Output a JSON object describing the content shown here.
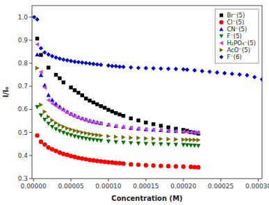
{
  "chart_data": {
    "type": "scatter",
    "xlabel": "Concentration (M)",
    "ylabel": "I/I₀",
    "xlim": [
      -2e-06,
      0.000305
    ],
    "ylim": [
      0.3,
      1.05
    ],
    "xticks": [
      {
        "value": 0.0,
        "label": "0.00000"
      },
      {
        "value": 5e-05,
        "label": "0.00005"
      },
      {
        "value": 0.0001,
        "label": "0.00010"
      },
      {
        "value": 0.00015,
        "label": "0.00015"
      },
      {
        "value": 0.0002,
        "label": "0.00020"
      },
      {
        "value": 0.00025,
        "label": "0.00025"
      },
      {
        "value": 0.0003,
        "label": "0.00030"
      }
    ],
    "yticks": [
      0.3,
      0.4,
      0.5,
      0.6,
      0.7,
      0.8,
      0.9,
      {
        "value": 1.0,
        "label": "1.0"
      }
    ],
    "grid": false,
    "legend": "upper right",
    "series": [
      {
        "name": "Br⁻(5)",
        "color": "#000000",
        "marker": "square",
        "x": [
          5e-06,
          1e-05,
          2e-05,
          3e-05,
          3.5e-05,
          4e-05,
          5e-05,
          5.5e-05,
          6e-05,
          6.5e-05,
          7e-05,
          7.5e-05,
          8e-05,
          8.5e-05,
          9e-05,
          9.5e-05,
          0.0001,
          0.000105,
          0.00011,
          0.000115,
          0.00012,
          0.00013,
          0.00014,
          0.00015,
          0.00016,
          0.00017,
          0.00018,
          0.00019,
          0.0002,
          0.000205,
          0.00021,
          0.000215,
          0.00022
        ],
        "values": [
          0.907,
          0.836,
          0.781,
          0.75,
          0.735,
          0.717,
          0.695,
          0.683,
          0.672,
          0.661,
          0.647,
          0.638,
          0.63,
          0.622,
          0.614,
          0.607,
          0.598,
          0.591,
          0.584,
          0.578,
          0.572,
          0.561,
          0.552,
          0.543,
          0.536,
          0.529,
          0.522,
          0.516,
          0.511,
          0.507,
          0.502,
          0.499,
          0.495
        ]
      },
      {
        "name": "Cl⁻(5)",
        "color": "#ff0000",
        "marker": "circle",
        "x": [
          5e-06,
          1e-05,
          1.5e-05,
          2e-05,
          2.5e-05,
          3e-05,
          3.5e-05,
          4e-05,
          4.5e-05,
          5e-05,
          5.5e-05,
          6e-05,
          6.5e-05,
          7e-05,
          7.5e-05,
          8e-05,
          8.5e-05,
          9e-05,
          9.5e-05,
          0.0001,
          0.000105,
          0.00011,
          0.000115,
          0.00012,
          0.00013,
          0.00014,
          0.00015,
          0.00016,
          0.00017,
          0.00018,
          0.00019,
          0.0002,
          0.00021,
          0.000215,
          0.00022
        ],
        "values": [
          0.487,
          0.46,
          0.448,
          0.435,
          0.427,
          0.42,
          0.413,
          0.407,
          0.403,
          0.398,
          0.394,
          0.39,
          0.387,
          0.384,
          0.381,
          0.379,
          0.377,
          0.375,
          0.373,
          0.371,
          0.37,
          0.368,
          0.367,
          0.365,
          0.362,
          0.36,
          0.358,
          0.357,
          0.355,
          0.354,
          0.353,
          0.352,
          0.351,
          0.35,
          0.349
        ]
      },
      {
        "name": "CN⁻(5)",
        "color": "#0000ff",
        "marker": "triangle-up",
        "x": [
          5e-06,
          1e-05,
          1.5e-05,
          2e-05,
          2.5e-05,
          3e-05,
          3.5e-05,
          4e-05,
          4.5e-05,
          5e-05,
          5.5e-05,
          6e-05,
          6.5e-05,
          7e-05,
          7.5e-05,
          8e-05,
          8.5e-05,
          9e-05,
          0.0001,
          0.00011,
          0.00012,
          0.00013,
          0.00014,
          0.00015,
          0.00016,
          0.00017,
          0.00018,
          0.00019,
          0.0002,
          0.00021,
          0.000215,
          0.00022
        ],
        "values": [
          0.838,
          0.749,
          0.705,
          0.662,
          0.641,
          0.625,
          0.612,
          0.6,
          0.59,
          0.581,
          0.574,
          0.567,
          0.561,
          0.556,
          0.551,
          0.547,
          0.543,
          0.54,
          0.534,
          0.528,
          0.524,
          0.52,
          0.517,
          0.514,
          0.512,
          0.51,
          0.508,
          0.506,
          0.504,
          0.502,
          0.501,
          0.5
        ]
      },
      {
        "name": "F⁻(5)",
        "color": "#007000",
        "marker": "triangle-down",
        "x": [
          5e-06,
          1e-05,
          1.5e-05,
          2e-05,
          2.5e-05,
          3e-05,
          3.5e-05,
          4e-05,
          4.5e-05,
          5e-05,
          5.5e-05,
          6e-05,
          6.5e-05,
          7e-05,
          7.5e-05,
          8e-05,
          8.5e-05,
          9e-05,
          0.0001,
          0.00011,
          0.00012,
          0.00013,
          0.00014,
          0.00015,
          0.00016,
          0.00017,
          0.00018,
          0.00019,
          0.0002,
          0.000205,
          0.00021,
          0.000215,
          0.00022
        ],
        "values": [
          0.61,
          0.574,
          0.555,
          0.538,
          0.524,
          0.514,
          0.506,
          0.499,
          0.493,
          0.488,
          0.483,
          0.479,
          0.476,
          0.473,
          0.47,
          0.468,
          0.466,
          0.464,
          0.461,
          0.458,
          0.456,
          0.454,
          0.452,
          0.451,
          0.45,
          0.449,
          0.448,
          0.447,
          0.446,
          0.445,
          0.444,
          0.443,
          0.442
        ]
      },
      {
        "name": "H₂PO₄⁻(5)",
        "color": "#cc44cc",
        "marker": "triangle-left",
        "x": [
          5e-06,
          1e-05,
          1.5e-05,
          2e-05,
          2.5e-05,
          3e-05,
          3.5e-05,
          4e-05,
          4.5e-05,
          5e-05,
          5.5e-05,
          6e-05,
          6.5e-05,
          7e-05,
          7.5e-05,
          8e-05,
          8.5e-05,
          9e-05,
          0.0001,
          0.00011,
          0.00012,
          0.00013,
          0.00014,
          0.00015,
          0.00016,
          0.00017,
          0.00018,
          0.00019,
          0.0002,
          0.000205,
          0.00021,
          0.000215,
          0.00022
        ],
        "values": [
          0.882,
          0.762,
          0.695,
          0.64,
          0.625,
          0.615,
          0.605,
          0.595,
          0.586,
          0.578,
          0.571,
          0.564,
          0.558,
          0.553,
          0.549,
          0.545,
          0.541,
          0.538,
          0.533,
          0.528,
          0.524,
          0.52,
          0.517,
          0.514,
          0.512,
          0.51,
          0.508,
          0.506,
          0.504,
          0.502,
          0.501,
          0.5,
          0.499
        ]
      },
      {
        "name": "AcO⁻(5)",
        "color": "#6b6b00",
        "marker": "triangle-right",
        "x": [
          5e-06,
          1e-05,
          1.5e-05,
          2e-05,
          2.5e-05,
          3e-05,
          3.5e-05,
          4e-05,
          4.5e-05,
          5e-05,
          5.5e-05,
          6e-05,
          6.5e-05,
          7e-05,
          7.5e-05,
          8e-05,
          8.5e-05,
          9e-05,
          0.0001,
          0.00011,
          0.00012,
          0.00013,
          0.00014,
          0.00015,
          0.00016,
          0.00017,
          0.00018,
          0.00019,
          0.0002,
          0.000205,
          0.00021,
          0.000215,
          0.00022
        ],
        "values": [
          0.779,
          0.62,
          0.59,
          0.568,
          0.553,
          0.541,
          0.532,
          0.525,
          0.518,
          0.513,
          0.508,
          0.504,
          0.5,
          0.497,
          0.494,
          0.491,
          0.489,
          0.487,
          0.484,
          0.481,
          0.479,
          0.477,
          0.476,
          0.474,
          0.473,
          0.472,
          0.471,
          0.47,
          0.469,
          0.469,
          0.468,
          0.468,
          0.467
        ]
      },
      {
        "name": "F⁻(6)",
        "color": "#0000cc",
        "marker": "diamond",
        "x": [
          1e-06,
          5e-06,
          1e-05,
          1.5e-05,
          2e-05,
          2.5e-05,
          3e-05,
          3.5e-05,
          4e-05,
          4.5e-05,
          5e-05,
          5.5e-05,
          6e-05,
          6.5e-05,
          7e-05,
          7.5e-05,
          8e-05,
          8.5e-05,
          9e-05,
          0.0001,
          0.000105,
          0.00011,
          0.000115,
          0.00012,
          0.00013,
          0.00014,
          0.00015,
          0.00016,
          0.00017,
          0.00018,
          0.00019,
          0.0002,
          0.000205,
          0.000215,
          0.000225,
          0.000235,
          0.000245,
          0.000255,
          0.000265,
          0.000275,
          0.000285,
          0.000295,
          0.000305
        ],
        "values": [
          1.0,
          0.99,
          0.865,
          0.847,
          0.838,
          0.831,
          0.825,
          0.82,
          0.816,
          0.813,
          0.81,
          0.807,
          0.805,
          0.803,
          0.801,
          0.799,
          0.797,
          0.795,
          0.793,
          0.79,
          0.788,
          0.787,
          0.785,
          0.784,
          0.782,
          0.78,
          0.779,
          0.778,
          0.777,
          0.776,
          0.775,
          0.774,
          0.772,
          0.769,
          0.766,
          0.763,
          0.76,
          0.757,
          0.754,
          0.751,
          0.748,
          0.74,
          0.73
        ]
      }
    ]
  }
}
